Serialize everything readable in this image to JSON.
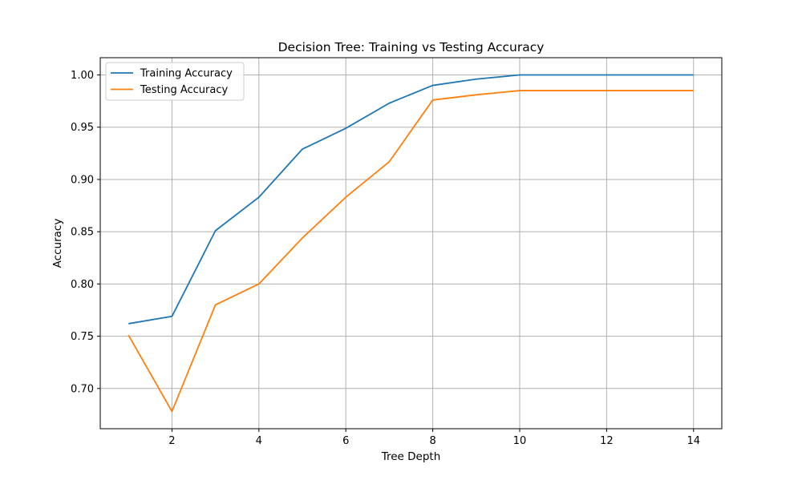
{
  "chart_data": {
    "type": "line",
    "title": "Decision Tree: Training vs Testing Accuracy",
    "xlabel": "Tree Depth",
    "ylabel": "Accuracy",
    "x": [
      1,
      2,
      3,
      4,
      5,
      6,
      7,
      8,
      9,
      10,
      11,
      12,
      13,
      14
    ],
    "series": [
      {
        "name": "Training Accuracy",
        "color": "#1f77b4",
        "values": [
          0.762,
          0.769,
          0.851,
          0.883,
          0.929,
          0.949,
          0.973,
          0.99,
          0.996,
          1.0,
          1.0,
          1.0,
          1.0,
          1.0
        ]
      },
      {
        "name": "Testing Accuracy",
        "color": "#ff7f0e",
        "values": [
          0.751,
          0.678,
          0.78,
          0.8,
          0.844,
          0.883,
          0.917,
          0.976,
          0.981,
          0.985,
          0.985,
          0.985,
          0.985,
          0.985
        ]
      }
    ],
    "xlim": [
      0.35,
      14.65
    ],
    "ylim": [
      0.6615,
      1.0165
    ],
    "xticks": [
      2,
      4,
      6,
      8,
      10,
      12,
      14
    ],
    "xtick_labels": [
      "2",
      "4",
      "6",
      "8",
      "10",
      "12",
      "14"
    ],
    "yticks": [
      0.7,
      0.75,
      0.8,
      0.85,
      0.9,
      0.95,
      1.0
    ],
    "ytick_labels": [
      "0.70",
      "0.75",
      "0.80",
      "0.85",
      "0.90",
      "0.95",
      "1.00"
    ],
    "grid": true,
    "grid_color": "#b0b0b0",
    "legend_position": "upper-left"
  }
}
